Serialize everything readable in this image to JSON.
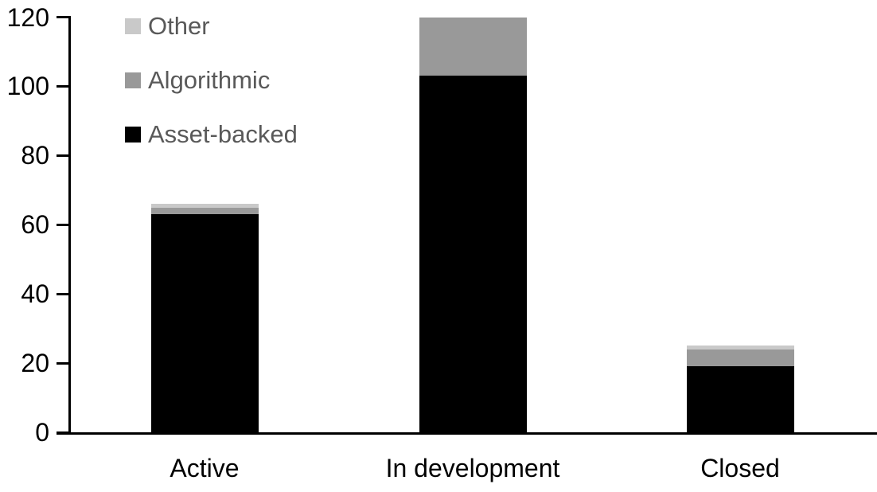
{
  "chart_data": {
    "type": "bar",
    "stacked": true,
    "categories": [
      "Active",
      "In development",
      "Closed"
    ],
    "series": [
      {
        "name": "Asset-backed",
        "color": "#000000",
        "values": [
          63,
          103,
          19
        ]
      },
      {
        "name": "Algorithmic",
        "color": "#999999",
        "values": [
          2,
          17,
          5
        ]
      },
      {
        "name": "Other",
        "color": "#C9C9C9",
        "values": [
          1,
          0,
          1
        ]
      }
    ],
    "totals": [
      66,
      120,
      25
    ],
    "ylim": [
      0,
      120
    ],
    "yticks": [
      0,
      20,
      40,
      60,
      80,
      100,
      120
    ],
    "grid": false,
    "legend_position": "top-left",
    "legend": [
      {
        "label": "Other",
        "color": "#C9C9C9"
      },
      {
        "label": "Algorithmic",
        "color": "#999999"
      },
      {
        "label": "Asset-backed",
        "color": "#000000"
      }
    ],
    "colors": {
      "axis": "#000000",
      "tick_label": "#000000",
      "category_label": "#000000",
      "legend_text": "#595959",
      "background": "#FFFFFF"
    }
  }
}
